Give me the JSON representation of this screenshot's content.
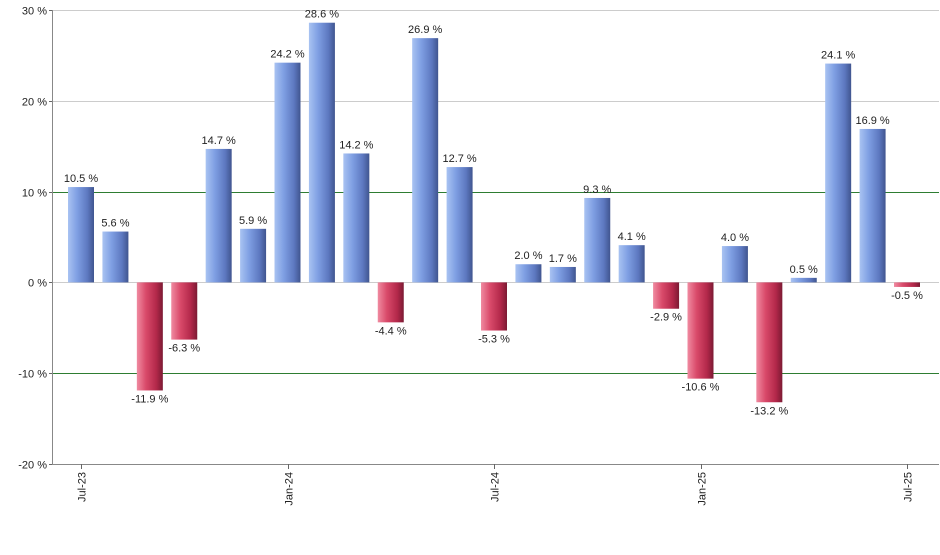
{
  "chart_data": {
    "type": "bar",
    "title": "",
    "xlabel": "",
    "ylabel": "",
    "ylim": [
      -20,
      30
    ],
    "yticks": [
      -20,
      -10,
      0,
      10,
      20,
      30
    ],
    "ytick_labels": [
      "-20 %",
      "-10 %",
      "0 %",
      "10 %",
      "20 %",
      "30 %"
    ],
    "green_reference_lines": [
      10,
      -10
    ],
    "colors": {
      "positive": "#6f93dc",
      "negative": "#cc3355",
      "reference_line": "#2e7d32",
      "grid": "#cccccc"
    },
    "categories": [
      "2023-07",
      "2023-08",
      "2023-09",
      "2023-10",
      "2023-11",
      "2023-12",
      "2024-01",
      "2024-02",
      "2024-03",
      "2024-04",
      "2024-05",
      "2024-06",
      "2024-07",
      "2024-08",
      "2024-09",
      "2024-10",
      "2024-11",
      "2024-12",
      "2025-01",
      "2025-02",
      "2025-03",
      "2025-04",
      "2025-05",
      "2025-06",
      "2025-07"
    ],
    "values": [
      10.5,
      5.6,
      -11.9,
      -6.3,
      14.7,
      5.9,
      24.2,
      28.6,
      14.2,
      -4.4,
      26.9,
      12.7,
      -5.3,
      2.0,
      1.7,
      9.3,
      4.1,
      -2.9,
      -10.6,
      4.0,
      -13.2,
      0.5,
      24.1,
      16.9,
      -0.5
    ],
    "value_labels": [
      "10.5 %",
      "5.6 %",
      "-11.9 %",
      "-6.3 %",
      "14.7 %",
      "5.9 %",
      "24.2 %",
      "28.6 %",
      "14.2 %",
      "-4.4 %",
      "26.9 %",
      "12.7 %",
      "-5.3 %",
      "2.0 %",
      "1.7 %",
      "9.3 %",
      "4.1 %",
      "-2.9 %",
      "-10.6 %",
      "4.0 %",
      "-13.2 %",
      "0.5 %",
      "24.1 %",
      "16.9 %",
      "-0.5 %"
    ],
    "x_tick_labels": [
      {
        "index": 0,
        "label": "Jul-23"
      },
      {
        "index": 6,
        "label": "Jan-24"
      },
      {
        "index": 12,
        "label": "Jul-24"
      },
      {
        "index": 18,
        "label": "Jan-25"
      },
      {
        "index": 24,
        "label": "Jul-25"
      }
    ]
  }
}
